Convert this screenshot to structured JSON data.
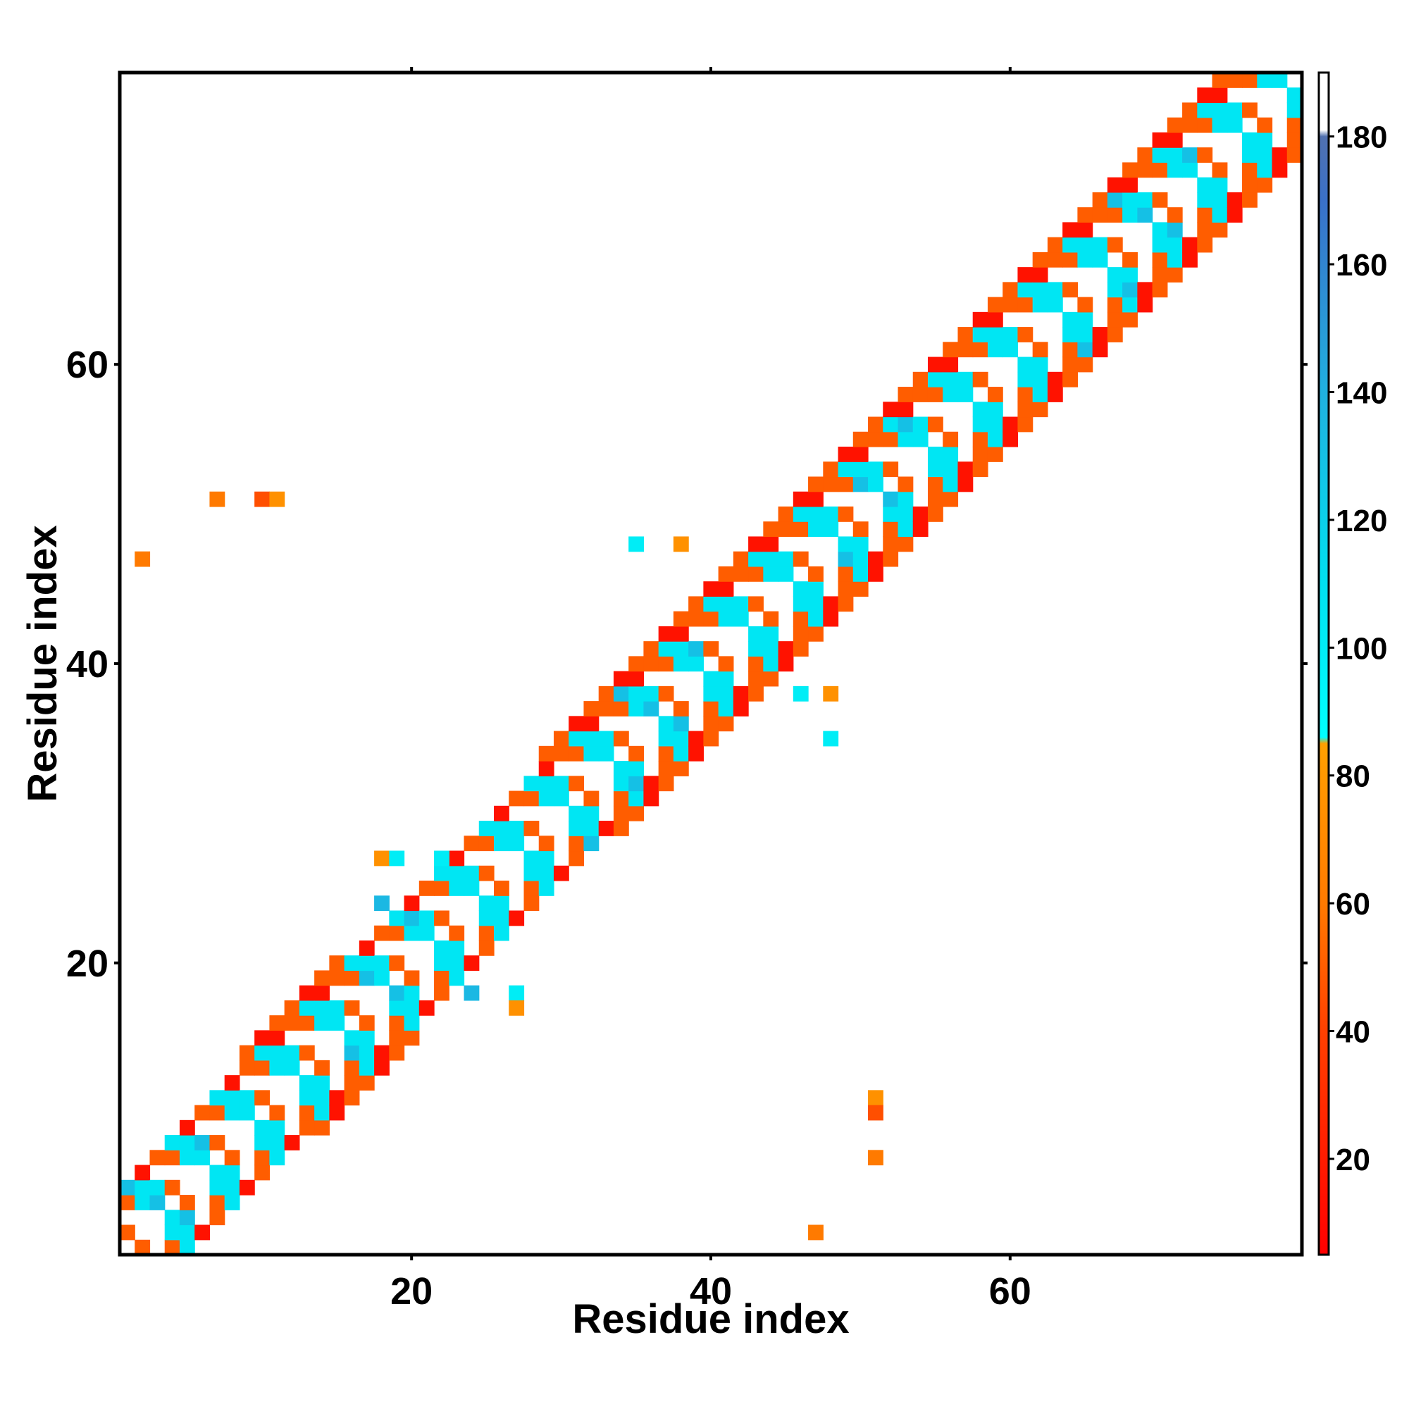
{
  "chart_data": {
    "type": "heatmap",
    "title": "",
    "xlabel": "Residue index",
    "ylabel": "Residue index",
    "xlim": [
      0.5,
      79.5
    ],
    "ylim": [
      0.5,
      79.5
    ],
    "x_ticks": [
      20,
      40,
      60
    ],
    "y_ticks": [
      20,
      40,
      60
    ],
    "x_tick_labels": [
      "20",
      "40",
      "60"
    ],
    "y_tick_labels": [
      "20",
      "40",
      "60"
    ],
    "grid": false,
    "legend": "none",
    "colorbar": {
      "placement": "right",
      "range": [
        5,
        190
      ],
      "ticks": [
        20,
        40,
        60,
        80,
        100,
        120,
        140,
        160,
        180
      ],
      "tick_labels": [
        "20",
        "40",
        "60",
        "80",
        "100",
        "120",
        "140",
        "160",
        "180"
      ],
      "stops": [
        {
          "value": 5,
          "color": "#ff0000"
        },
        {
          "value": 40,
          "color": "#ff4000"
        },
        {
          "value": 60,
          "color": "#ff7a00"
        },
        {
          "value": 85,
          "color": "#ffa000"
        },
        {
          "value": 86,
          "color": "#00ffff"
        },
        {
          "value": 110,
          "color": "#00e0f0"
        },
        {
          "value": 140,
          "color": "#20b0e0"
        },
        {
          "value": 170,
          "color": "#3a70c8"
        },
        {
          "value": 180,
          "color": "#5070b0"
        },
        {
          "value": 181,
          "color": "#ffffff"
        },
        {
          "value": 190,
          "color": "#ffffff"
        }
      ]
    },
    "band": {
      "description_values": "diagonal band of cell angles; pattern cycles red(15) / orange(50) / cyan(105) / white(190)",
      "half_width_segments": [
        {
          "from": 1,
          "to": 8,
          "width": 4
        },
        {
          "from": 9,
          "to": 20,
          "width": 5
        },
        {
          "from": 21,
          "to": 28,
          "width": 4
        },
        {
          "from": 29,
          "to": 42,
          "width": 5
        },
        {
          "from": 43,
          "to": 79,
          "width": 5
        }
      ],
      "cycle_values": [
        15,
        50,
        105,
        190,
        105,
        50
      ]
    },
    "points": [
      {
        "x": 2,
        "y": 47,
        "value": 60
      },
      {
        "x": 7,
        "y": 51,
        "value": 60
      },
      {
        "x": 10,
        "y": 51,
        "value": 45
      },
      {
        "x": 11,
        "y": 51,
        "value": 75
      },
      {
        "x": 35,
        "y": 48,
        "value": 100
      },
      {
        "x": 38,
        "y": 48,
        "value": 75
      },
      {
        "x": 18,
        "y": 27,
        "value": 75
      },
      {
        "x": 19,
        "y": 27,
        "value": 100
      },
      {
        "x": 22,
        "y": 27,
        "value": 100
      },
      {
        "x": 18,
        "y": 24,
        "value": 135
      },
      {
        "x": 24,
        "y": 18,
        "value": 135
      },
      {
        "x": 27,
        "y": 18,
        "value": 100
      },
      {
        "x": 27,
        "y": 17,
        "value": 75
      },
      {
        "x": 48,
        "y": 38,
        "value": 75
      },
      {
        "x": 48,
        "y": 35,
        "value": 100
      },
      {
        "x": 46,
        "y": 38,
        "value": 100
      },
      {
        "x": 51,
        "y": 11,
        "value": 75
      },
      {
        "x": 51,
        "y": 10,
        "value": 45
      },
      {
        "x": 51,
        "y": 7,
        "value": 60
      },
      {
        "x": 47,
        "y": 2,
        "value": 60
      }
    ]
  }
}
